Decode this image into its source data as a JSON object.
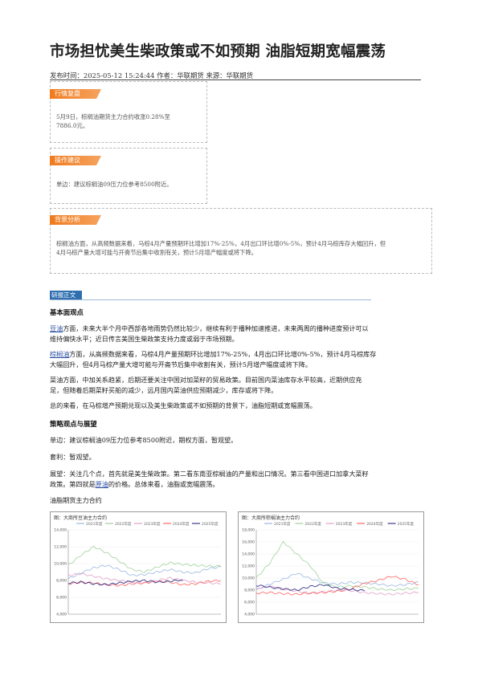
{
  "article": {
    "title": "市场担忧美生柴政策或不如预期 油脂短期宽幅震荡",
    "meta": "发布时间：2025-05-12 15:24:44 作者：华联期货 来源：华联期货"
  },
  "sections": {
    "review": {
      "tag": "行情复盘",
      "text_1": "5月9日，棕榈油期货主力合约收涨0.28%至",
      "text_2": "7886.0元。"
    },
    "advice": {
      "tag": "操作建议",
      "text": "单边：建议棕榈油09压力位参考8500附近。"
    },
    "background": {
      "tag": "背景分析",
      "text_1": "棕榈油方面，从高频数据来看，马棕4月产量预期环比增加17%-25%，4月出口环比增0%-5%，预计4月马棕库存大幅回升，但",
      "text_2": "4月马棕产量大增可能与开斋节后集中收割有关，预计5月增产幅度或将下降。"
    }
  },
  "research": {
    "tag": "研报正文",
    "h1": "基本面观点",
    "p1_link": "豆油",
    "p1_a": "方面，未来大半个月中西部各地雨势仍然比较少，继续有利于播种加速推进，未来两周的播种进度预计可以",
    "p1_b": "维持偏快水平；近日传言美国生柴政策支持力度或弱于市场预期。",
    "p2_link": "棕榈油",
    "p2_a": "方面，从高频数据来看，马棕4月产量预期环比增加17%-25%，4月出口环比增0%-5%，预计4月马棕库存",
    "p2_b": "大幅回升，但4月马棕产量大增可能与开斋节后集中收割有关，预计5月增产幅度或将下降。",
    "p3_a": "菜油方面，中加关系趋紧，后期还要关注中国对加菜籽的贸易政策。目前国内菜油库存水平较高，近期供应充",
    "p3_b": "足，但随着后期菜籽买船的减少，远月国内菜油供应预期减少，库存或将下降。",
    "p4": "总的来看，在马棕增产预期兑现以及美生柴政策或不如预期的背景下，油脂短期或宽幅震荡。",
    "h2": "策略观点与展望",
    "s1": "单边：建议棕榈油09压力位参考8500附近，期权方面，暂观望。",
    "s2": "套利：暂观望。",
    "s3_a": "展望：关注几个点，首先就是美生柴政策。第二看东南亚棕榈油的产量和出口情况。第三看中国进口加拿大菜籽",
    "s3_b_1": "政策。第四就是",
    "s3_b_link": "原油",
    "s3_b_2": "的价格。总体来看，油脂或宽幅震荡。",
    "figure_caption": "油脂期货主力合约"
  },
  "charts": {
    "left_title": "图：大商所豆油主力合约",
    "right_title": "图：大商所棕榈油主力合约"
  },
  "colors": {
    "tag_orange": "#f07a1c",
    "tag_blue": "#2f6fb0",
    "link": "#2b4fa3"
  },
  "chart_data": [
    {
      "type": "line",
      "title": "图：大商所豆油主力合约",
      "legend": [
        "2021年度",
        "2022年度",
        "2023年度",
        "2024年度",
        "2025年度"
      ],
      "colors": [
        "#9bb7e0",
        "#9fd39a",
        "#e0a0c8",
        "#ff6666",
        "#3a3a8c"
      ],
      "ylim": [
        4000,
        14000
      ],
      "y_ticks": [
        4000,
        6000,
        8000,
        10000,
        12000,
        14000
      ],
      "series": [
        {
          "values": [
            8200,
            8900,
            9500,
            9800,
            9300,
            8600,
            8700,
            9000,
            9300,
            9000,
            8900,
            9400,
            9600
          ]
        },
        {
          "values": [
            9800,
            11000,
            12000,
            11300,
            10300,
            9300,
            9000,
            9600,
            10100,
            9900,
            9800,
            9700,
            9700
          ]
        },
        {
          "values": [
            8600,
            8800,
            8500,
            8200,
            8000,
            7800,
            7700,
            8000,
            8300,
            8000,
            7800,
            7700,
            7600
          ]
        },
        {
          "values": [
            7600,
            7800,
            7700,
            7500,
            7400,
            7600,
            7700,
            7900,
            7800,
            7500,
            7600,
            7900,
            8000
          ]
        },
        {
          "values": [
            7700,
            7800,
            7600,
            7500,
            7700,
            7900,
            8000,
            7800,
            7900,
            8100
          ]
        }
      ]
    },
    {
      "type": "line",
      "title": "图：大商所棕榈油主力合约",
      "legend": [
        "2021年度",
        "2022年度",
        "2023年度",
        "2024年度",
        "2025年度"
      ],
      "colors": [
        "#9bb7e0",
        "#9fd39a",
        "#e0a0c8",
        "#ff6666",
        "#3a3a8c"
      ],
      "ylim": [
        4000,
        18000
      ],
      "y_ticks": [
        4000,
        6000,
        8000,
        10000,
        12000,
        14000,
        16000,
        18000
      ],
      "series": [
        {
          "values": [
            8000,
            9000,
            9800,
            10800,
            9900,
            9200,
            9000,
            9300,
            9200,
            9000,
            8700,
            8900,
            9300
          ]
        },
        {
          "values": [
            10000,
            12500,
            16000,
            14000,
            12000,
            9000,
            8500,
            8700,
            8500,
            8200,
            8000,
            8200,
            8300
          ]
        },
        {
          "values": [
            8300,
            8600,
            8200,
            7800,
            7500,
            7700,
            8000,
            7900,
            7600,
            7400,
            7300,
            7500,
            7600
          ]
        },
        {
          "values": [
            7500,
            7600,
            7400,
            7300,
            7500,
            7600,
            7800,
            8200,
            9100,
            9600,
            10300,
            9800,
            8900
          ]
        },
        {
          "values": [
            8800,
            8500,
            8200,
            8000,
            8600,
            8900,
            8300,
            8100,
            7900
          ]
        }
      ]
    }
  ]
}
